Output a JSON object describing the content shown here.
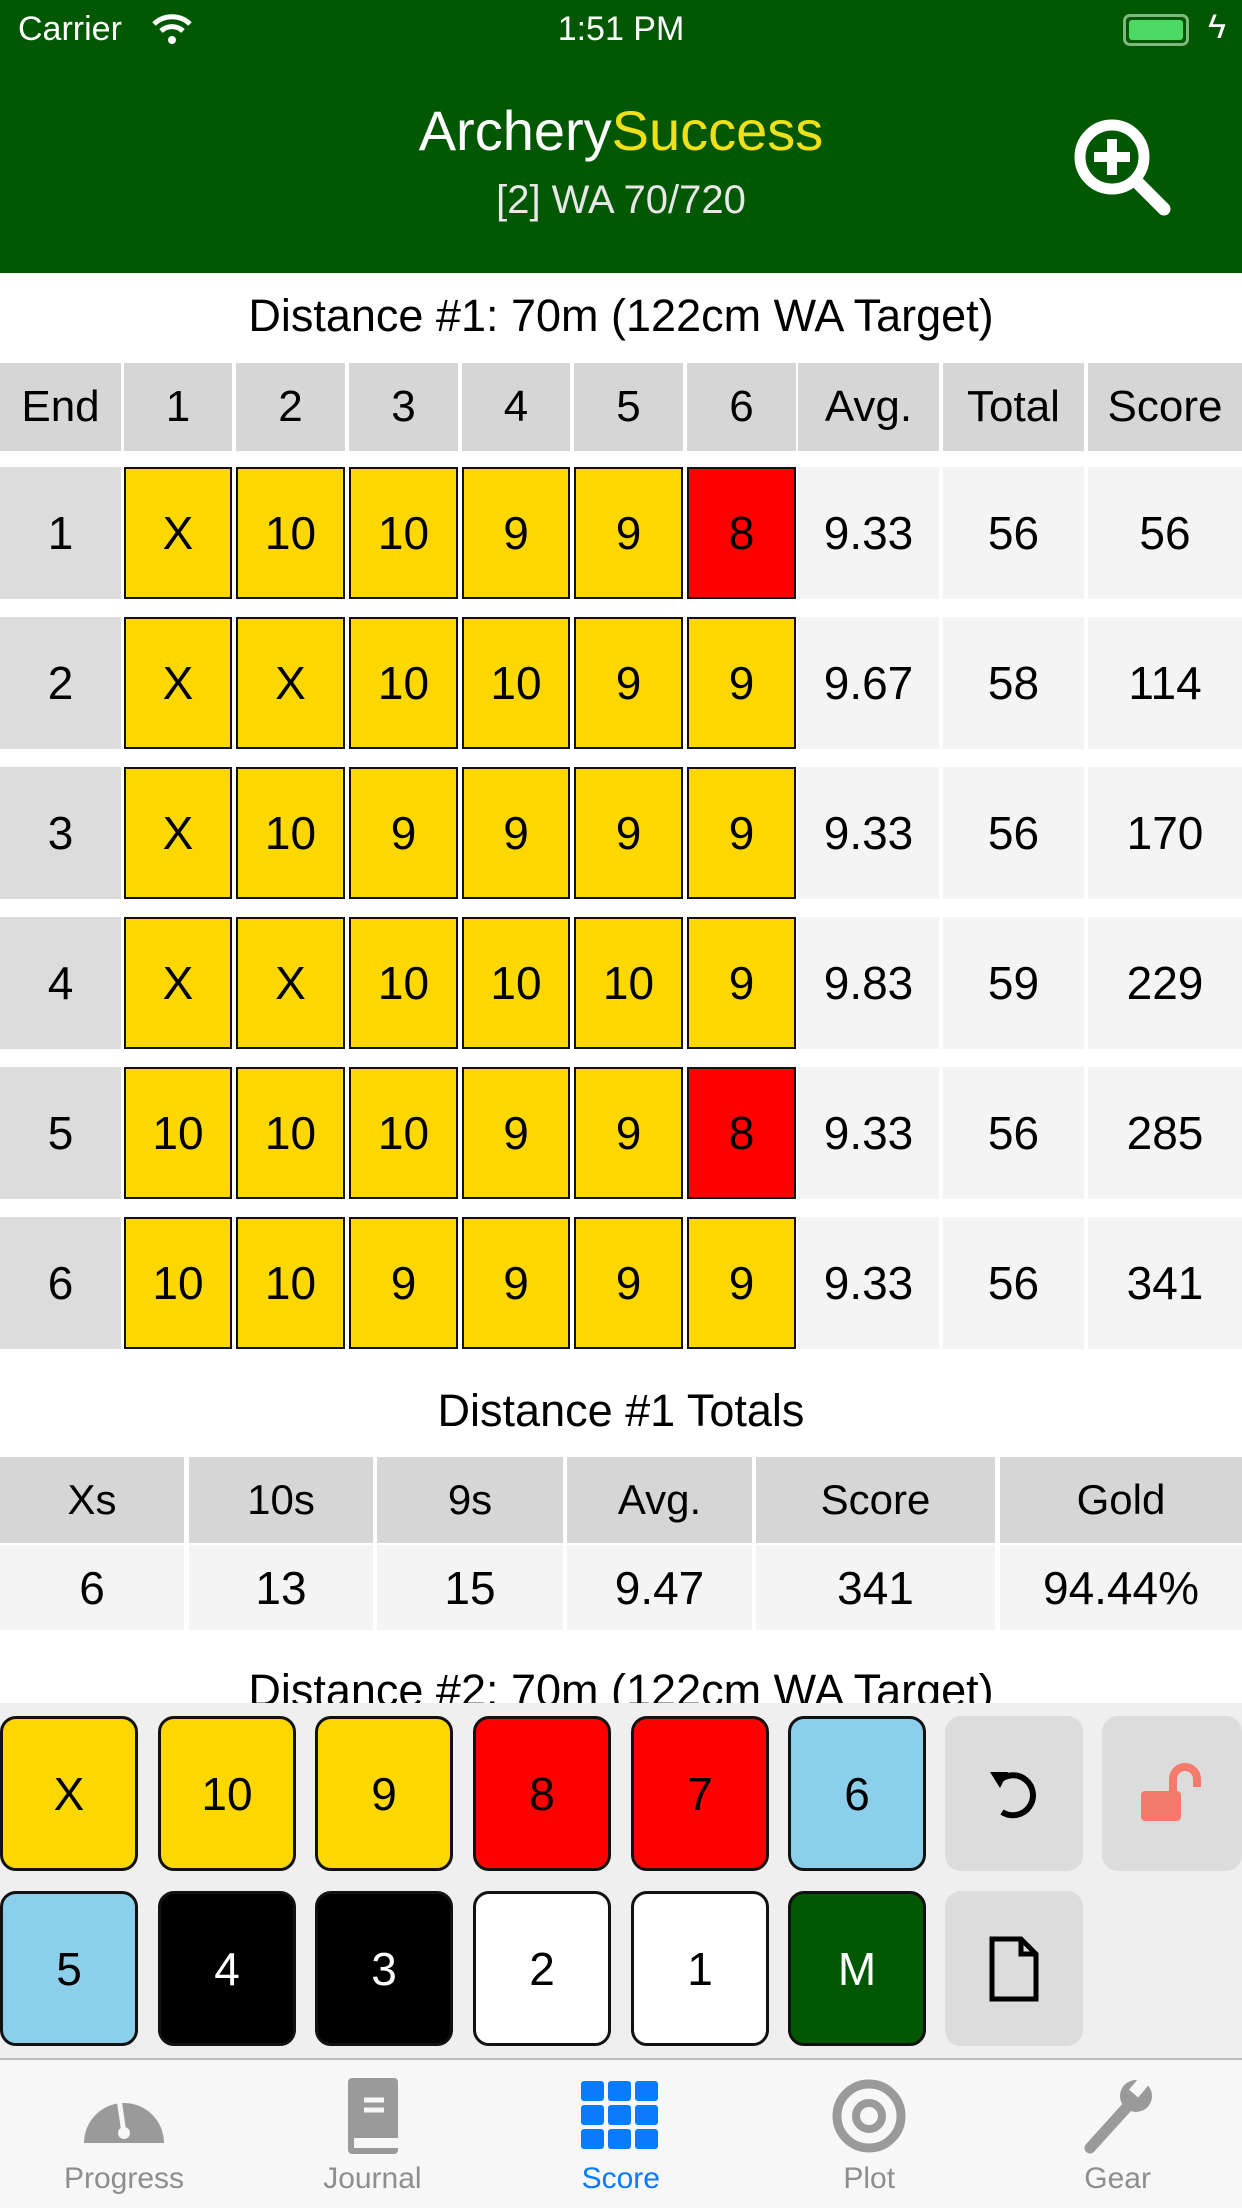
{
  "status": {
    "carrier": "Carrier",
    "time": "1:51 PM"
  },
  "header": {
    "title_a": "Archery",
    "title_b": "Success",
    "subtitle": "[2] WA 70/720"
  },
  "distance1": {
    "title": "Distance #1: 70m (122cm WA Target)",
    "columns": [
      "End",
      "1",
      "2",
      "3",
      "4",
      "5",
      "6",
      "Avg.",
      "Total",
      "Score"
    ],
    "rows": [
      {
        "end": "1",
        "arrows": [
          "X",
          "10",
          "10",
          "9",
          "9",
          "8"
        ],
        "avg": "9.33",
        "total": "56",
        "score": "56"
      },
      {
        "end": "2",
        "arrows": [
          "X",
          "X",
          "10",
          "10",
          "9",
          "9"
        ],
        "avg": "9.67",
        "total": "58",
        "score": "114"
      },
      {
        "end": "3",
        "arrows": [
          "X",
          "10",
          "9",
          "9",
          "9",
          "9"
        ],
        "avg": "9.33",
        "total": "56",
        "score": "170"
      },
      {
        "end": "4",
        "arrows": [
          "X",
          "X",
          "10",
          "10",
          "10",
          "9"
        ],
        "avg": "9.83",
        "total": "59",
        "score": "229"
      },
      {
        "end": "5",
        "arrows": [
          "10",
          "10",
          "10",
          "9",
          "9",
          "8"
        ],
        "avg": "9.33",
        "total": "56",
        "score": "285"
      },
      {
        "end": "6",
        "arrows": [
          "10",
          "10",
          "9",
          "9",
          "9",
          "9"
        ],
        "avg": "9.33",
        "total": "56",
        "score": "341"
      }
    ]
  },
  "totals": {
    "title": "Distance #1 Totals",
    "columns": [
      "Xs",
      "10s",
      "9s",
      "Avg.",
      "Score",
      "Gold"
    ],
    "values": [
      "6",
      "13",
      "15",
      "9.47",
      "341",
      "94.44%"
    ]
  },
  "distance2": {
    "title": "Distance #2: 70m (122cm WA Target)"
  },
  "keypad": {
    "row1": [
      {
        "label": "X",
        "bg": "#fcd800",
        "fg": "#000"
      },
      {
        "label": "10",
        "bg": "#fcd800",
        "fg": "#000"
      },
      {
        "label": "9",
        "bg": "#fcd800",
        "fg": "#000"
      },
      {
        "label": "8",
        "bg": "#fe0000",
        "fg": "#000"
      },
      {
        "label": "7",
        "bg": "#fe0000",
        "fg": "#000"
      },
      {
        "label": "6",
        "bg": "#8ccfeb",
        "fg": "#000"
      }
    ],
    "row2": [
      {
        "label": "5",
        "bg": "#8ccfeb",
        "fg": "#000"
      },
      {
        "label": "4",
        "bg": "#000000",
        "fg": "#fff"
      },
      {
        "label": "3",
        "bg": "#000000",
        "fg": "#fff"
      },
      {
        "label": "2",
        "bg": "#ffffff",
        "fg": "#000"
      },
      {
        "label": "1",
        "bg": "#ffffff",
        "fg": "#000"
      },
      {
        "label": "M",
        "bg": "#025802",
        "fg": "#fff"
      }
    ],
    "undo_icon": "undo-icon",
    "lock_icon": "unlock-icon",
    "doc_icon": "document-icon"
  },
  "colors": {
    "gold": "#fcd800",
    "red": "#fe0000",
    "header": "#025802",
    "active_tab": "#0a7aff"
  },
  "tabs": [
    {
      "label": "Progress",
      "icon": "gauge-icon"
    },
    {
      "label": "Journal",
      "icon": "book-icon"
    },
    {
      "label": "Score",
      "icon": "grid-icon",
      "active": true
    },
    {
      "label": "Plot",
      "icon": "target-icon"
    },
    {
      "label": "Gear",
      "icon": "wrench-icon"
    }
  ]
}
